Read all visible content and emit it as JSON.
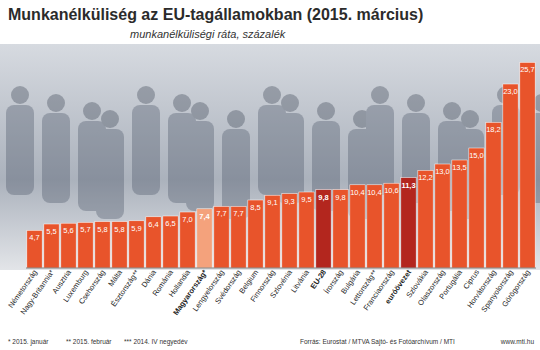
{
  "chart_data": {
    "type": "bar",
    "title": "Munkanélküliség az EU-tagállamokban (2015. március)",
    "subtitle": "munkanélküliségi ráta, százalék",
    "categories": [
      "Németország",
      "Nagy-Britannia*",
      "Ausztria",
      "Luxemburg",
      "Csehország",
      "Málta",
      "Észtország**",
      "Dánia",
      "Románia",
      "Hollandia",
      "Magyarország*",
      "Lengyelország",
      "Svédország",
      "Belgium",
      "Finnország",
      "Szlovénia",
      "Litvánia",
      "EU-28",
      "Írország",
      "Bulgária",
      "Lettország**",
      "Franciaország",
      "euróövezet",
      "Szlovákia",
      "Olaszország",
      "Portugália",
      "Ciprus",
      "Horvátország",
      "Spanyolország",
      "Görögország"
    ],
    "values": [
      4.7,
      5.5,
      5.6,
      5.7,
      5.8,
      5.8,
      5.9,
      6.4,
      6.5,
      7.0,
      7.4,
      7.7,
      7.7,
      8.5,
      9.1,
      9.3,
      9.5,
      9.8,
      9.8,
      10.4,
      10.4,
      10.6,
      11.3,
      12.2,
      13.0,
      13.5,
      15.0,
      18.2,
      23.0,
      25.7
    ],
    "value_labels": [
      "4,7",
      "5,5",
      "5,6",
      "5,7",
      "5,8",
      "5,8",
      "5,9",
      "6,4",
      "6,5",
      "7,0",
      "7,4",
      "7,7",
      "7,7",
      "8,5",
      "9,1",
      "9,3",
      "9,5",
      "9,8",
      "9,8",
      "10,4",
      "10,4",
      "10,6",
      "11,3",
      "12,2",
      "13,0",
      "13,5",
      "15,0",
      "18,2",
      "23,0",
      "25,7"
    ],
    "color": "#e8542b",
    "colors": [
      "#e8542b",
      "#e8542b",
      "#e8542b",
      "#e8542b",
      "#e8542b",
      "#e8542b",
      "#e8542b",
      "#e8542b",
      "#e8542b",
      "#e8542b",
      "#f4a27c",
      "#e8542b",
      "#e8542b",
      "#e8542b",
      "#e8542b",
      "#e8542b",
      "#e8542b",
      "#b3261e",
      "#e8542b",
      "#e8542b",
      "#e8542b",
      "#e8542b",
      "#b3261e",
      "#e8542b",
      "#e8542b",
      "#e8542b",
      "#e8542b",
      "#e8542b",
      "#e8542b",
      "#e8542b"
    ],
    "ylim": [
      0,
      26
    ],
    "data_labels": true,
    "tick_labels": "x",
    "grid": false,
    "annotations": [
      "* 2015. január",
      "** 2015. február",
      "*** 2014. IV negyedév"
    ],
    "source": "Forrás: Eurostat / MTVA Sajtó- és Fotóarchívum / MTI",
    "website": "www.mti.hu"
  }
}
